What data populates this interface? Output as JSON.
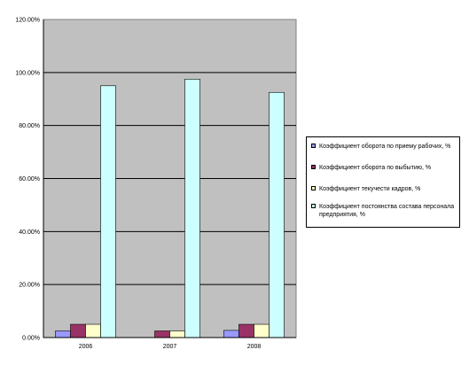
{
  "chart_data": {
    "type": "bar",
    "categories": [
      "2006",
      "2007",
      "2008"
    ],
    "series": [
      {
        "name": "Коэффициент оборота по приему рабочих, %",
        "color": "#9999ff",
        "values": [
          2.5,
          0,
          2.7
        ]
      },
      {
        "name": "Коэффициент оборота по выбытию, %",
        "color": "#993366",
        "values": [
          5,
          2.5,
          5
        ]
      },
      {
        "name": "Коэффициент текучести кадров, %",
        "color": "#ffffcc",
        "values": [
          5,
          2.5,
          5
        ]
      },
      {
        "name": "Коэффициент постоянства состава персонала предприятия, %",
        "color": "#ccffff",
        "values": [
          95,
          97.5,
          92.5
        ]
      }
    ],
    "y_ticks": [
      "0.00%",
      "20.00%",
      "40.00%",
      "60.00%",
      "80.00%",
      "100.00%",
      "120.00%"
    ],
    "ylim": [
      0,
      120
    ],
    "grid": true,
    "plot_background": "#c0c0c0",
    "legend_position": "right"
  }
}
